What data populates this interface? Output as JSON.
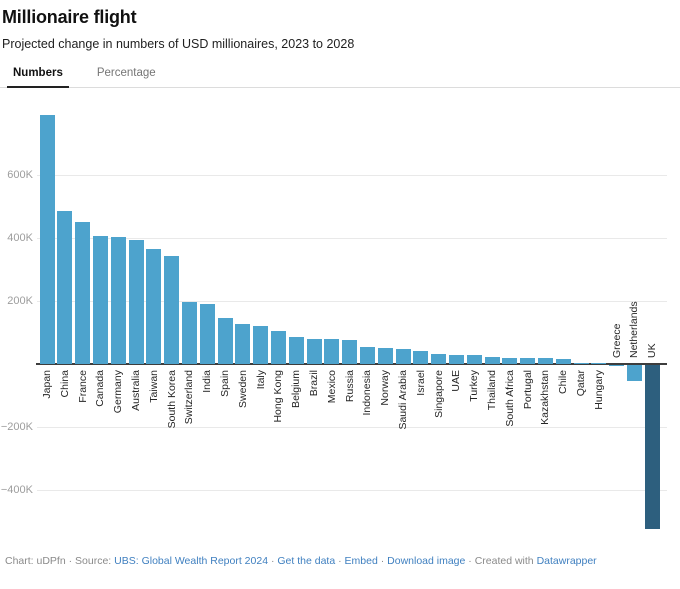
{
  "tabs": {
    "items": [
      {
        "label": "Numbers",
        "active": true
      },
      {
        "label": "Percentage",
        "active": false
      }
    ]
  },
  "chart_data": {
    "type": "bar",
    "title": "Millionaire flight",
    "subtitle": "Projected change in numbers of USD millionaires, 2023 to 2028",
    "xlabel": "",
    "ylabel": "",
    "value_unit": "thousands of millionaires",
    "ylim": [
      -560,
      820
    ],
    "grid": "horizontal",
    "legend": "none",
    "categories": [
      "Japan",
      "China",
      "France",
      "Canada",
      "Germany",
      "Australia",
      "Taiwan",
      "South Korea",
      "Switzerland",
      "India",
      "Spain",
      "Sweden",
      "Italy",
      "Hong Kong",
      "Belgium",
      "Brazil",
      "Mexico",
      "Russia",
      "Indonesia",
      "Norway",
      "Saudi Arabia",
      "Israel",
      "Singapore",
      "UAE",
      "Turkey",
      "Thailand",
      "South Africa",
      "Portugal",
      "Kazakhstan",
      "Chile",
      "Qatar",
      "Hungary",
      "Greece",
      "Netherlands",
      "UK"
    ],
    "values_k": [
      790,
      487,
      450,
      407,
      404,
      394,
      366,
      343,
      198,
      192,
      147,
      128,
      121,
      105,
      87,
      80,
      78,
      77,
      54,
      51,
      48,
      41,
      33,
      30,
      27,
      23,
      20,
      19,
      18,
      15,
      4,
      3,
      -2,
      -52,
      -520
    ],
    "yticks": [
      {
        "label": "600K",
        "value": 600
      },
      {
        "label": "400K",
        "value": 400
      },
      {
        "label": "200K",
        "value": 200
      },
      {
        "label": "−200K",
        "value": -200
      },
      {
        "label": "−400K",
        "value": -400
      }
    ],
    "highlight_category": "UK",
    "colors": {
      "bar": "#4da3cd",
      "highlight": "#2d5f7e",
      "grid": "#e9e9e9",
      "axis": "#3d3d3d",
      "tick_text": "#9d9d9d",
      "link": "#4080c0"
    }
  },
  "footer": {
    "segments": [
      {
        "text": "Chart: uDPfn · Source: ",
        "link": false
      },
      {
        "text": "UBS: Global Wealth Report 2024",
        "link": true
      },
      {
        "text": " · ",
        "link": false
      },
      {
        "text": "Get the data",
        "link": true
      },
      {
        "text": " · ",
        "link": false
      },
      {
        "text": "Embed",
        "link": true
      },
      {
        "text": " · ",
        "link": false
      },
      {
        "text": "Download image",
        "link": true
      },
      {
        "text": " · Created with ",
        "link": false
      },
      {
        "text": "Datawrapper",
        "link": true
      }
    ]
  }
}
